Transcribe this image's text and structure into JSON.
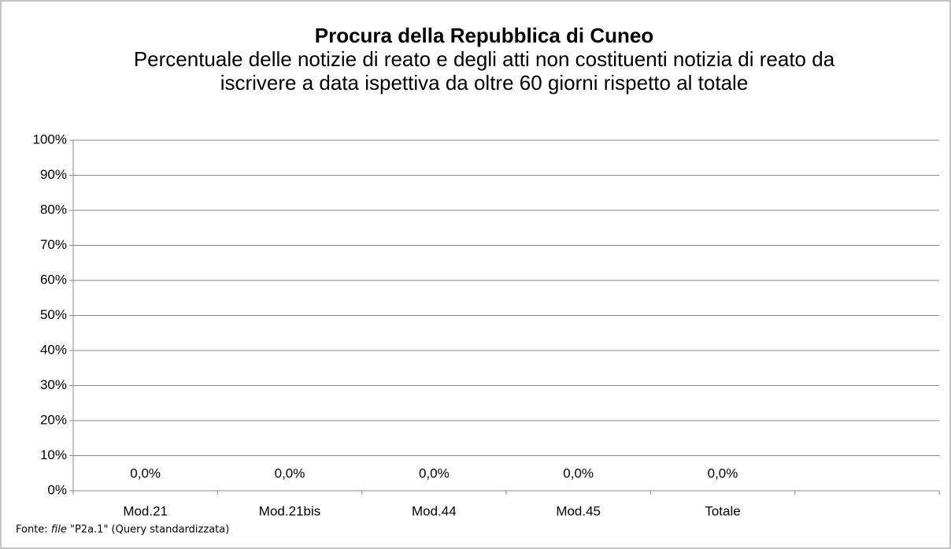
{
  "chart_data": {
    "type": "bar",
    "title": "Procura della Repubblica di Cuneo",
    "subtitle": "Percentuale delle notizie di reato e degli atti non costituenti notizia di reato da iscrivere a data ispettiva da oltre 60 giorni rispetto al totale",
    "categories": [
      "Mod.21",
      "Mod.21bis",
      "Mod.44",
      "Mod.45",
      "Totale",
      null
    ],
    "values": [
      0,
      0,
      0,
      0,
      0,
      null
    ],
    "value_labels": [
      "0,0%",
      "0,0%",
      "0,0%",
      "0,0%",
      "0,0%",
      null
    ],
    "color": "#4f81bd",
    "ylim": [
      0,
      100
    ],
    "yticks": [
      {
        "value": 0,
        "label": "0%"
      },
      {
        "value": 10,
        "label": "10%"
      },
      {
        "value": 20,
        "label": "20%"
      },
      {
        "value": 30,
        "label": "30%"
      },
      {
        "value": 40,
        "label": "40%"
      },
      {
        "value": 50,
        "label": "50%"
      },
      {
        "value": 60,
        "label": "60%"
      },
      {
        "value": 70,
        "label": "70%"
      },
      {
        "value": 80,
        "label": "80%"
      },
      {
        "value": 90,
        "label": "90%"
      },
      {
        "value": 100,
        "label": "100%"
      }
    ],
    "grid": true,
    "source_prefix": "Fonte:",
    "source_italic": "file",
    "source_rest": "\"P2a.1\" (Query standardizzata)"
  }
}
